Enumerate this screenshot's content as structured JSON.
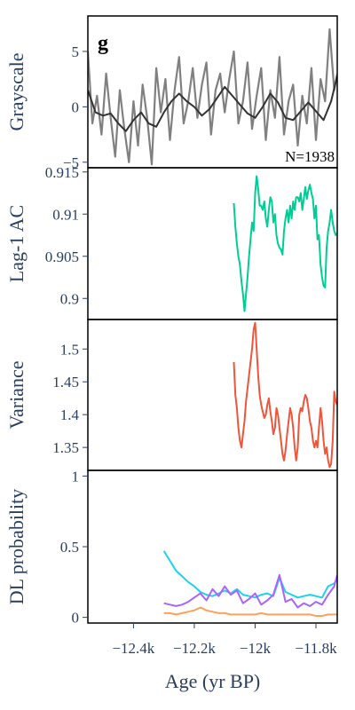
{
  "panel_label": "g",
  "chart_data": {
    "type": "line",
    "xlabel": "Age (yr BP)",
    "xlim": [
      -12550,
      -11730
    ],
    "x_ticks": [
      -12400,
      -12200,
      -12000,
      -11800
    ],
    "x_tick_labels": [
      "−12.4k",
      "−12.2k",
      "−12k",
      "−11.8k"
    ],
    "subplots": [
      {
        "id": "grayscale",
        "ylabel": "Grayscale",
        "ylim": [
          -5.5,
          8.2
        ],
        "y_ticks": [
          -5,
          0,
          5
        ],
        "y_tick_labels": [
          "−5",
          "0",
          "5"
        ],
        "annotation": "N=1938",
        "series": [
          {
            "color": "#808080",
            "x": [
              -12550,
              -12535,
              -12520,
              -12505,
              -12490,
              -12475,
              -12460,
              -12445,
              -12430,
              -12415,
              -12400,
              -12385,
              -12370,
              -12355,
              -12340,
              -12325,
              -12310,
              -12295,
              -12280,
              -12265,
              -12250,
              -12235,
              -12220,
              -12205,
              -12190,
              -12175,
              -12160,
              -12145,
              -12130,
              -12115,
              -12100,
              -12085,
              -12070,
              -12055,
              -12040,
              -12025,
              -12010,
              -11995,
              -11980,
              -11965,
              -11950,
              -11935,
              -11920,
              -11905,
              -11890,
              -11875,
              -11860,
              -11845,
              -11830,
              -11815,
              -11800,
              -11785,
              -11770,
              -11755,
              -11740,
              -11730
            ],
            "y": [
              5.0,
              -1.5,
              1.0,
              -2.5,
              3.0,
              -1.0,
              -4.5,
              1.5,
              -2.0,
              -5.0,
              0.5,
              -3.5,
              2.0,
              -1.0,
              -5.2,
              3.5,
              -0.5,
              2.5,
              -3.0,
              1.5,
              4.5,
              -1.5,
              0.5,
              3.5,
              -1.0,
              2.0,
              4.0,
              -2.5,
              1.5,
              3.0,
              -0.5,
              2.5,
              5.0,
              -1.5,
              0.5,
              4.0,
              -2.0,
              1.0,
              3.5,
              -3.0,
              1.5,
              -1.0,
              4.5,
              -2.5,
              0.5,
              2.0,
              -3.5,
              1.0,
              -1.5,
              3.5,
              -3.0,
              2.5,
              0.5,
              7.0,
              1.5,
              3.0
            ]
          },
          {
            "color": "#333333",
            "x": [
              -12550,
              -12525,
              -12500,
              -12475,
              -12450,
              -12425,
              -12400,
              -12375,
              -12350,
              -12325,
              -12300,
              -12275,
              -12250,
              -12225,
              -12200,
              -12175,
              -12150,
              -12125,
              -12100,
              -12075,
              -12050,
              -12025,
              -12000,
              -11975,
              -11950,
              -11925,
              -11900,
              -11875,
              -11850,
              -11825,
              -11800,
              -11775,
              -11750,
              -11730
            ],
            "y": [
              1.5,
              -0.5,
              -0.8,
              -0.6,
              -1.5,
              -2.2,
              -1.2,
              -0.5,
              -1.5,
              -1.8,
              -0.5,
              0.5,
              1.2,
              0.5,
              0.0,
              -0.8,
              -0.2,
              0.8,
              1.8,
              1.0,
              0.2,
              -0.6,
              -1.0,
              0.0,
              1.2,
              0.4,
              -1.0,
              -1.2,
              -0.4,
              0.4,
              -0.4,
              -1.2,
              0.5,
              2.8
            ]
          }
        ]
      },
      {
        "id": "lag1ac",
        "ylabel": "Lag-1 AC",
        "ylim": [
          0.8975,
          0.9155
        ],
        "y_ticks": [
          0.9,
          0.905,
          0.91,
          0.915
        ],
        "y_tick_labels": [
          "0.9",
          "0.905",
          "0.91",
          "0.915"
        ],
        "series": [
          {
            "color": "#00cc96",
            "x": [
              -12070,
              -12065,
              -12060,
              -12055,
              -12050,
              -12045,
              -12040,
              -12035,
              -12030,
              -12025,
              -12020,
              -12015,
              -12010,
              -12005,
              -12000,
              -11995,
              -11990,
              -11985,
              -11980,
              -11975,
              -11970,
              -11965,
              -11960,
              -11955,
              -11950,
              -11945,
              -11940,
              -11935,
              -11930,
              -11925,
              -11920,
              -11915,
              -11910,
              -11905,
              -11900,
              -11895,
              -11890,
              -11885,
              -11880,
              -11875,
              -11870,
              -11865,
              -11860,
              -11855,
              -11850,
              -11845,
              -11840,
              -11835,
              -11830,
              -11825,
              -11820,
              -11815,
              -11810,
              -11805,
              -11800,
              -11795,
              -11790,
              -11785,
              -11780,
              -11775,
              -11770,
              -11765,
              -11760,
              -11755,
              -11750,
              -11745,
              -11740,
              -11735,
              -11730
            ],
            "y": [
              0.9113,
              0.9085,
              0.9065,
              0.905,
              0.904,
              0.902,
              0.9005,
              0.8985,
              0.9005,
              0.9025,
              0.905,
              0.907,
              0.909,
              0.908,
              0.9125,
              0.9145,
              0.913,
              0.911,
              0.911,
              0.9105,
              0.9115,
              0.9095,
              0.9085,
              0.9105,
              0.912,
              0.9115,
              0.909,
              0.91,
              0.9075,
              0.9065,
              0.906,
              0.9058,
              0.9052,
              0.908,
              0.9095,
              0.9105,
              0.909,
              0.911,
              0.9095,
              0.9115,
              0.9105,
              0.912,
              0.912,
              0.9115,
              0.9125,
              0.9105,
              0.9118,
              0.9132,
              0.9118,
              0.9128,
              0.9135,
              0.9125,
              0.9118,
              0.9095,
              0.911,
              0.907,
              0.9075,
              0.904,
              0.9025,
              0.9015,
              0.9013,
              0.906,
              0.908,
              0.909,
              0.9105,
              0.909,
              0.908,
              0.9075,
              0.9078
            ]
          }
        ]
      },
      {
        "id": "variance",
        "ylabel": "Variance",
        "ylim": [
          1.315,
          1.545
        ],
        "y_ticks": [
          1.35,
          1.4,
          1.45,
          1.5
        ],
        "y_tick_labels": [
          "1.35",
          "1.4",
          "1.45",
          "1.5"
        ],
        "series": [
          {
            "color": "#ef553b",
            "x": [
              -12070,
              -12065,
              -12060,
              -12055,
              -12050,
              -12045,
              -12040,
              -12035,
              -12030,
              -12025,
              -12020,
              -12015,
              -12010,
              -12005,
              -12000,
              -11995,
              -11990,
              -11985,
              -11980,
              -11975,
              -11970,
              -11965,
              -11960,
              -11955,
              -11950,
              -11945,
              -11940,
              -11935,
              -11930,
              -11925,
              -11920,
              -11915,
              -11910,
              -11905,
              -11900,
              -11895,
              -11890,
              -11885,
              -11880,
              -11875,
              -11870,
              -11865,
              -11860,
              -11855,
              -11850,
              -11845,
              -11840,
              -11835,
              -11830,
              -11825,
              -11820,
              -11815,
              -11810,
              -11805,
              -11800,
              -11795,
              -11790,
              -11785,
              -11780,
              -11775,
              -11770,
              -11765,
              -11760,
              -11755,
              -11750,
              -11745,
              -11740,
              -11735,
              -11730
            ],
            "y": [
              1.48,
              1.43,
              1.41,
              1.38,
              1.36,
              1.35,
              1.37,
              1.39,
              1.42,
              1.44,
              1.46,
              1.48,
              1.5,
              1.53,
              1.54,
              1.5,
              1.46,
              1.43,
              1.415,
              1.405,
              1.395,
              1.4,
              1.415,
              1.425,
              1.405,
              1.39,
              1.37,
              1.38,
              1.41,
              1.4,
              1.38,
              1.36,
              1.34,
              1.33,
              1.345,
              1.37,
              1.39,
              1.41,
              1.4,
              1.38,
              1.35,
              1.33,
              1.35,
              1.4,
              1.41,
              1.405,
              1.42,
              1.43,
              1.425,
              1.41,
              1.39,
              1.38,
              1.36,
              1.35,
              1.36,
              1.35,
              1.38,
              1.41,
              1.39,
              1.36,
              1.34,
              1.35,
              1.33,
              1.32,
              1.325,
              1.36,
              1.435,
              1.42,
              1.415
            ]
          }
        ]
      },
      {
        "id": "dlprob",
        "ylabel": "DL probability",
        "ylim": [
          -0.04,
          1.04
        ],
        "y_ticks": [
          0,
          0.5,
          1
        ],
        "y_tick_labels": [
          "0",
          "0.5",
          "1"
        ],
        "series": [
          {
            "color": "#19d3f3",
            "x": [
              -12300,
              -12280,
              -12260,
              -12240,
              -12220,
              -12200,
              -12180,
              -12160,
              -12140,
              -12120,
              -12100,
              -12080,
              -12060,
              -12040,
              -12020,
              -12000,
              -11980,
              -11960,
              -11940,
              -11920,
              -11900,
              -11880,
              -11860,
              -11840,
              -11820,
              -11800,
              -11780,
              -11760,
              -11740,
              -11730
            ],
            "y": [
              0.47,
              0.4,
              0.33,
              0.29,
              0.25,
              0.22,
              0.18,
              0.16,
              0.15,
              0.17,
              0.19,
              0.17,
              0.2,
              0.16,
              0.15,
              0.14,
              0.16,
              0.17,
              0.15,
              0.28,
              0.18,
              0.16,
              0.14,
              0.15,
              0.16,
              0.15,
              0.14,
              0.22,
              0.24,
              0.27
            ]
          },
          {
            "color": "#ab63fa",
            "x": [
              -12300,
              -12280,
              -12260,
              -12240,
              -12220,
              -12200,
              -12180,
              -12160,
              -12140,
              -12120,
              -12100,
              -12080,
              -12060,
              -12040,
              -12020,
              -12000,
              -11980,
              -11960,
              -11940,
              -11920,
              -11900,
              -11880,
              -11860,
              -11840,
              -11820,
              -11800,
              -11780,
              -11760,
              -11740,
              -11730
            ],
            "y": [
              0.1,
              0.09,
              0.08,
              0.09,
              0.11,
              0.14,
              0.17,
              0.12,
              0.2,
              0.15,
              0.22,
              0.16,
              0.19,
              0.1,
              0.13,
              0.17,
              0.09,
              0.12,
              0.16,
              0.3,
              0.11,
              0.13,
              0.07,
              0.1,
              0.08,
              0.11,
              0.09,
              0.16,
              0.22,
              0.3
            ]
          },
          {
            "color": "#ffa15a",
            "x": [
              -12300,
              -12280,
              -12260,
              -12240,
              -12220,
              -12200,
              -12180,
              -12160,
              -12140,
              -12120,
              -12100,
              -12080,
              -12060,
              -12040,
              -12020,
              -12000,
              -11980,
              -11960,
              -11940,
              -11920,
              -11900,
              -11880,
              -11860,
              -11840,
              -11820,
              -11800,
              -11780,
              -11760,
              -11740,
              -11730
            ],
            "y": [
              0.03,
              0.03,
              0.02,
              0.03,
              0.04,
              0.05,
              0.07,
              0.05,
              0.04,
              0.03,
              0.03,
              0.02,
              0.02,
              0.02,
              0.02,
              0.02,
              0.03,
              0.02,
              0.02,
              0.02,
              0.02,
              0.02,
              0.02,
              0.02,
              0.02,
              0.01,
              0.01,
              0.02,
              0.02,
              0.02
            ]
          }
        ]
      }
    ]
  }
}
